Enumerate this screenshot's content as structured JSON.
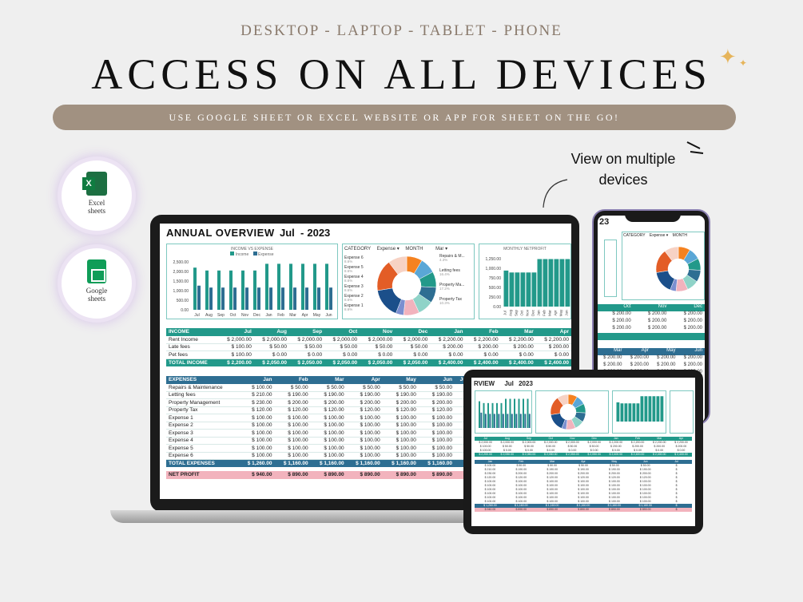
{
  "header": {
    "subtitle": "DESKTOP - LAPTOP - TABLET - PHONE",
    "headline": "ACCESS ON ALL DEVICES",
    "banner": "USE GOOGLE SHEET OR EXCEL WEBSITE OR APP FOR SHEET ON THE GO!"
  },
  "apps": [
    {
      "icon": "excel-icon",
      "label_line1": "Excel",
      "label_line2": "sheets"
    },
    {
      "icon": "google-sheets-icon",
      "label_line1": "Google",
      "label_line2": "sheets"
    }
  ],
  "callout": {
    "line1": "View on multiple",
    "line2": "devices"
  },
  "dashboard": {
    "title": "ANNUAL OVERVIEW",
    "month": "Jul",
    "year": "2023",
    "income_chart_title": "INCOME VS EXPENSE",
    "legend_income": "Income",
    "legend_expense": "Expense",
    "category_label": "CATEGORY",
    "category_value": "Expense",
    "month_label": "MONTH",
    "month_value": "Mar",
    "netprofit_chart_title": "MONTHLY NETPROFIT",
    "pie_labels": [
      "Expense 6",
      "Expense 5",
      "Expense 4",
      "Expense 3",
      "Expense 2",
      "Expense 1",
      "Repairs & M...",
      "Letting fees",
      "Property Ma...",
      "Property Tax"
    ],
    "pie_pcts": [
      "8.6%",
      "8.6%",
      "8.6%",
      "8.6%",
      "8.6%",
      "8.6%",
      "4.3%",
      "16.4%",
      "17.2%",
      "10.3%"
    ],
    "colors": {
      "teal": "#22998a",
      "blue": "#2e6e92",
      "pink": "#f2b3bd"
    }
  },
  "chart_data": [
    {
      "type": "bar",
      "title": "INCOME VS EXPENSE",
      "categories": [
        "Jul",
        "Aug",
        "Sep",
        "Oct",
        "Nov",
        "Dec",
        "Jan",
        "Feb",
        "Mar",
        "Apr",
        "May",
        "Jun"
      ],
      "series": [
        {
          "name": "Income",
          "values": [
            2200,
            2050,
            2050,
            2050,
            2050,
            2050,
            2400,
            2400,
            2400,
            2400,
            2400,
            2400
          ]
        },
        {
          "name": "Expense",
          "values": [
            1260,
            1160,
            1160,
            1160,
            1160,
            1160,
            1160,
            1160,
            1160,
            1160,
            1160,
            1160
          ]
        }
      ],
      "yticks": [
        "2,500.00",
        "2,000.00",
        "1,500.00",
        "1,000.00",
        "500.00",
        "0.00"
      ],
      "ylim": [
        0,
        2500
      ]
    },
    {
      "type": "bar",
      "title": "MONTHLY NETPROFIT",
      "categories": [
        "Jul",
        "Aug",
        "Sep",
        "Oct",
        "Nov",
        "Dec",
        "Jan",
        "Feb",
        "Mar",
        "Apr",
        "May",
        "Jun"
      ],
      "values": [
        940,
        890,
        890,
        890,
        890,
        890,
        1240,
        1240,
        1240,
        1240,
        1240,
        1240
      ],
      "yticks": [
        "1,250.00",
        "1,000.00",
        "750.00",
        "500.00",
        "250.00",
        "0.00"
      ],
      "ylim": [
        0,
        1250
      ]
    }
  ],
  "income_table": {
    "headers": [
      "INCOME",
      "Jul",
      "Aug",
      "Sep",
      "Oct",
      "Nov",
      "Dec",
      "Jan",
      "Feb",
      "Mar",
      "Apr"
    ],
    "rows": [
      [
        "Rent Income",
        "$ 2,000.00",
        "$ 2,000.00",
        "$ 2,000.00",
        "$ 2,000.00",
        "$ 2,000.00",
        "$ 2,000.00",
        "$ 2,200.00",
        "$ 2,200.00",
        "$ 2,200.00",
        "$ 2,200.00"
      ],
      [
        "Late fees",
        "$ 100.00",
        "$ 50.00",
        "$ 50.00",
        "$ 50.00",
        "$ 50.00",
        "$ 50.00",
        "$ 200.00",
        "$ 200.00",
        "$ 200.00",
        "$ 200.00"
      ],
      [
        "Pet fees",
        "$ 100.00",
        "$ 0.00",
        "$ 0.00",
        "$ 0.00",
        "$ 0.00",
        "$ 0.00",
        "$ 0.00",
        "$ 0.00",
        "$ 0.00",
        "$ 0.00"
      ]
    ],
    "total": [
      "TOTAL INCOME",
      "$ 2,200.00",
      "$ 2,050.00",
      "$ 2,050.00",
      "$ 2,050.00",
      "$ 2,050.00",
      "$ 2,050.00",
      "$ 2,400.00",
      "$ 2,400.00",
      "$ 2,400.00",
      "$ 2,400.00"
    ]
  },
  "expense_table": {
    "headers": [
      "EXPENSES",
      "Jan",
      "Feb",
      "Mar",
      "Apr",
      "May",
      "Jun",
      "Jul"
    ],
    "rows": [
      [
        "Repairs & Maintenance",
        "$ 100.00",
        "$ 50.00",
        "$ 50.00",
        "$ 50.00",
        "$ 50.00",
        "$ 50.00",
        "$"
      ],
      [
        "Letting fees",
        "$ 210.00",
        "$ 190.00",
        "$ 190.00",
        "$ 190.00",
        "$ 190.00",
        "$ 190.00",
        "$"
      ],
      [
        "Property Management",
        "$ 230.00",
        "$ 200.00",
        "$ 200.00",
        "$ 200.00",
        "$ 200.00",
        "$ 200.00",
        "$"
      ],
      [
        "Property Tax",
        "$ 120.00",
        "$ 120.00",
        "$ 120.00",
        "$ 120.00",
        "$ 120.00",
        "$ 120.00",
        "$"
      ],
      [
        "Expense 1",
        "$ 100.00",
        "$ 100.00",
        "$ 100.00",
        "$ 100.00",
        "$ 100.00",
        "$ 100.00",
        "$"
      ],
      [
        "Expense 2",
        "$ 100.00",
        "$ 100.00",
        "$ 100.00",
        "$ 100.00",
        "$ 100.00",
        "$ 100.00",
        "$"
      ],
      [
        "Expense 3",
        "$ 100.00",
        "$ 100.00",
        "$ 100.00",
        "$ 100.00",
        "$ 100.00",
        "$ 100.00",
        "$"
      ],
      [
        "Expense 4",
        "$ 100.00",
        "$ 100.00",
        "$ 100.00",
        "$ 100.00",
        "$ 100.00",
        "$ 100.00",
        "$"
      ],
      [
        "Expense 5",
        "$ 100.00",
        "$ 100.00",
        "$ 100.00",
        "$ 100.00",
        "$ 100.00",
        "$ 100.00",
        "$"
      ],
      [
        "Expense 6",
        "$ 100.00",
        "$ 100.00",
        "$ 100.00",
        "$ 100.00",
        "$ 100.00",
        "$ 100.00",
        "$"
      ]
    ],
    "total": [
      "TOTAL EXPENSES",
      "$ 1,260.00",
      "$ 1,160.00",
      "$ 1,160.00",
      "$ 1,160.00",
      "$ 1,160.00",
      "$ 1,160.00",
      "$"
    ],
    "net_profit": [
      "NET PROFIT",
      "$ 940.00",
      "$ 890.00",
      "$ 890.00",
      "$ 890.00",
      "$ 890.00",
      "$ 890.00",
      "$"
    ]
  },
  "phone": {
    "year": "23",
    "category_label": "CATEGORY",
    "category_value": "Expense",
    "month_label": "MONTH",
    "col_headers_a": [
      "Oct",
      "Nov",
      "Dec"
    ],
    "col_headers_b": [
      "Mar",
      "Apr",
      "May",
      "Jun"
    ],
    "cell_value": "200.00"
  },
  "tablet": {
    "title": "RVIEW",
    "month": "Jul",
    "year": "2023"
  }
}
